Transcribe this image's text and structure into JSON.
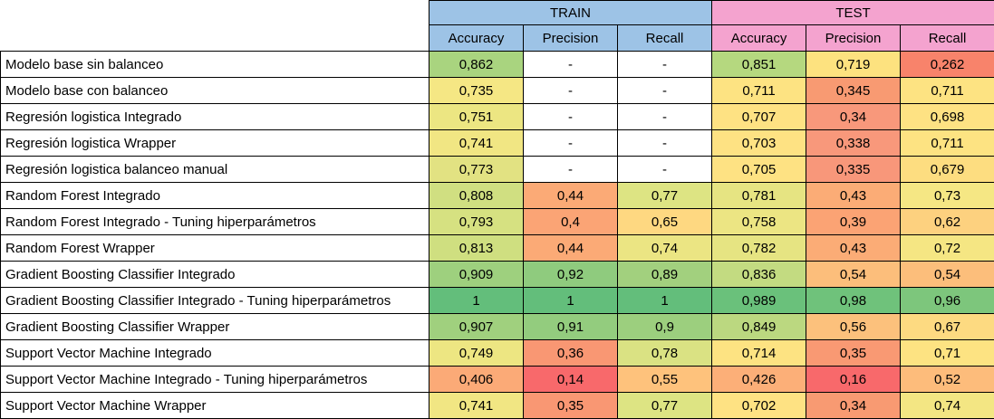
{
  "groups": {
    "train": "TRAIN",
    "test": "TEST"
  },
  "columns": [
    "Accuracy",
    "Precision",
    "Recall",
    "Accuracy",
    "Precision",
    "Recall"
  ],
  "rows": [
    {
      "label": "Modelo base sin balanceo",
      "values": [
        "0,862",
        "-",
        "-",
        "0,851",
        "0,719",
        "0,262"
      ],
      "colors": [
        "#a9d47f",
        "#ffffff",
        "#ffffff",
        "#b5d87f",
        "#fde27f",
        "#f8836b"
      ]
    },
    {
      "label": "Modelo base con balanceo",
      "values": [
        "0,735",
        "-",
        "-",
        "0,711",
        "0,345",
        "0,711"
      ],
      "colors": [
        "#f5e784",
        "#ffffff",
        "#ffffff",
        "#fde382",
        "#f89a72",
        "#fde382"
      ]
    },
    {
      "label": "Regresión logistica Integrado",
      "values": [
        "0,751",
        "-",
        "-",
        "0,707",
        "0,34",
        "0,698"
      ],
      "colors": [
        "#ece682",
        "#ffffff",
        "#ffffff",
        "#fee283",
        "#f8987b",
        "#fee283"
      ]
    },
    {
      "label": "Regresión logistica Wrapper",
      "values": [
        "0,741",
        "-",
        "-",
        "0,703",
        "0,338",
        "0,711"
      ],
      "colors": [
        "#f1e683",
        "#ffffff",
        "#ffffff",
        "#fee283",
        "#f8987b",
        "#fde382"
      ]
    },
    {
      "label": "Regresión logistica balanceo manual",
      "values": [
        "0,773",
        "-",
        "-",
        "0,705",
        "0,335",
        "0,679"
      ],
      "colors": [
        "#e2e282",
        "#ffffff",
        "#ffffff",
        "#fee283",
        "#f8977a",
        "#fddd80"
      ]
    },
    {
      "label": "Random Forest Integrado",
      "values": [
        "0,808",
        "0,44",
        "0,77",
        "0,781",
        "0,43",
        "0,73"
      ],
      "colors": [
        "#d0df81",
        "#fbaa76",
        "#dde483",
        "#e6e482",
        "#fbac76",
        "#f5e784"
      ]
    },
    {
      "label": "Random Forest Integrado - Tuning hiperparámetros",
      "values": [
        "0,793",
        "0,4",
        "0,65",
        "0,758",
        "0,39",
        "0,62"
      ],
      "colors": [
        "#d6e181",
        "#fba475",
        "#fed881",
        "#ece583",
        "#fba374",
        "#fdd17f"
      ]
    },
    {
      "label": "Random Forest Wrapper",
      "values": [
        "0,813",
        "0,44",
        "0,74",
        "0,782",
        "0,43",
        "0,72"
      ],
      "colors": [
        "#cfdf80",
        "#fbaa76",
        "#ebe583",
        "#e6e482",
        "#fbac76",
        "#f5e683"
      ]
    },
    {
      "label": "Gradient Boosting Classifier Integrado",
      "values": [
        "0,909",
        "0,92",
        "0,89",
        "0,836",
        "0,54",
        "0,54"
      ],
      "colors": [
        "#9ed07e",
        "#8fcb7e",
        "#a2d07e",
        "#c3db81",
        "#fcbe7b",
        "#fcbe7b"
      ]
    },
    {
      "label": "Gradient Boosting Classifier Integrado - Tuning hiperparámetros",
      "values": [
        "1",
        "1",
        "1",
        "0,989",
        "0,98",
        "0,96"
      ],
      "colors": [
        "#63be7b",
        "#63be7b",
        "#63be7b",
        "#6ac17b",
        "#6fc27b",
        "#7dc67c"
      ]
    },
    {
      "label": "Gradient Boosting Classifier Wrapper",
      "values": [
        "0,907",
        "0,91",
        "0,9",
        "0,849",
        "0,56",
        "0,67"
      ],
      "colors": [
        "#a0d07e",
        "#93cc7e",
        "#9ccf7e",
        "#bbd880",
        "#fcc17c",
        "#fdda81"
      ]
    },
    {
      "label": "Support Vector Machine Integrado",
      "values": [
        "0,749",
        "0,36",
        "0,78",
        "0,714",
        "0,35",
        "0,71"
      ],
      "colors": [
        "#ede682",
        "#f99773",
        "#dae283",
        "#fde382",
        "#f99973",
        "#fde382"
      ]
    },
    {
      "label": "Support Vector Machine Integrado - Tuning hiperparámetros",
      "values": [
        "0,406",
        "0,14",
        "0,55",
        "0,426",
        "0,16",
        "0,52"
      ],
      "colors": [
        "#fbaa77",
        "#f8696b",
        "#fec27c",
        "#fcaf78",
        "#f8696b",
        "#fdbc7b"
      ]
    },
    {
      "label": "Support Vector Machine Wrapper",
      "values": [
        "0,741",
        "0,35",
        "0,77",
        "0,702",
        "0,34",
        "0,74"
      ],
      "colors": [
        "#f1e683",
        "#f99773",
        "#dde483",
        "#fee283",
        "#f89a72",
        "#f3e683"
      ]
    }
  ]
}
